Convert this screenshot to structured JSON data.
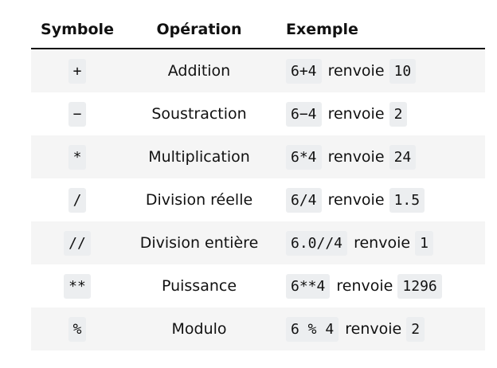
{
  "headers": {
    "symbol": "Symbole",
    "operation": "Opération",
    "example": "Exemple"
  },
  "rows": [
    {
      "symbol": "+",
      "operation": "Addition",
      "expr": "6+4",
      "word": "renvoie",
      "result": "10"
    },
    {
      "symbol": "−",
      "operation": "Soustraction",
      "expr": "6−4",
      "word": "renvoie",
      "result": "2"
    },
    {
      "symbol": "*",
      "operation": "Multiplication",
      "expr": "6*4",
      "word": "renvoie",
      "result": "24"
    },
    {
      "symbol": "/",
      "operation": "Division réelle",
      "expr": "6/4",
      "word": "renvoie",
      "result": "1.5"
    },
    {
      "symbol": "//",
      "operation": "Division entière",
      "expr": "6.0//4",
      "word": "renvoie",
      "result": "1"
    },
    {
      "symbol": "**",
      "operation": "Puissance",
      "expr": "6**4",
      "word": "renvoie",
      "result": "1296"
    },
    {
      "symbol": "%",
      "operation": "Modulo",
      "expr": "6 % 4",
      "word": "renvoie",
      "result": "2"
    }
  ]
}
